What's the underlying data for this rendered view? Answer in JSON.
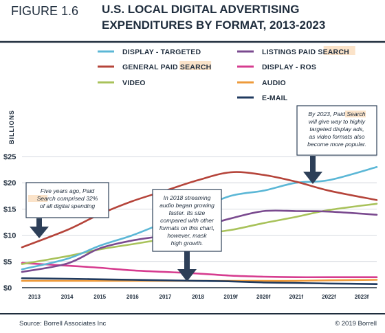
{
  "header": {
    "figure_label": "FIGURE 1.6",
    "title_line1": "U.S. LOCAL DIGITAL ADVERTISING",
    "title_line2": "EXPENDITURES BY FORMAT, 2013-2023"
  },
  "footer": {
    "source": "Source:  Borrell Associates Inc",
    "copyright": "© 2019 Borrell"
  },
  "annotations": [
    {
      "lines": [
        "Five years ago, Paid",
        "Search comprised 32%",
        "of all digital spending"
      ]
    },
    {
      "lines": [
        "In 2018 streaming",
        "audio began growing",
        "faster. Its size",
        "compared with other",
        "formats on this chart,",
        "however, mask",
        "high growth."
      ]
    },
    {
      "lines": [
        "By 2023, Paid Search",
        "will give way to highly",
        "targeted display ads,",
        "as video formats also",
        "become more popular."
      ]
    }
  ],
  "chart_data": {
    "type": "line",
    "title": "U.S. LOCAL DIGITAL ADVERTISING EXPENDITURES BY FORMAT, 2013-2023",
    "xlabel": "",
    "ylabel": "BILLIONS",
    "x": [
      "2013",
      "2014",
      "2015",
      "2016",
      "2017",
      "2018",
      "2019f",
      "2020f",
      "2021f",
      "2022f",
      "2023f"
    ],
    "ylim": [
      0,
      25
    ],
    "yticks": [
      "$0",
      "$5",
      "$10",
      "$15",
      "$20",
      "$25"
    ],
    "grid": true,
    "legend_position": "top",
    "series": [
      {
        "name": "DISPLAY - TARGETED",
        "color": "#5bb7d6",
        "values": [
          3.5,
          5.5,
          8.0,
          10.0,
          12.5,
          15.0,
          17.5,
          18.5,
          20.0,
          20.5,
          23.0
        ]
      },
      {
        "name": "GENERAL PAID SEARCH",
        "color": "#b5443a",
        "values": [
          7.7,
          11.0,
          14.0,
          16.5,
          18.5,
          20.5,
          22.0,
          21.5,
          20.2,
          18.5,
          16.7
        ]
      },
      {
        "name": "VIDEO",
        "color": "#a8c25a",
        "values": [
          4.5,
          6.0,
          7.3,
          8.3,
          9.3,
          10.2,
          11.0,
          12.3,
          13.5,
          14.8,
          16.0
        ]
      },
      {
        "name": "LISTINGS PAID SEARCH",
        "color": "#7a4a8f",
        "values": [
          3.0,
          4.6,
          7.5,
          9.0,
          10.0,
          11.5,
          13.2,
          14.6,
          14.6,
          14.5,
          13.9
        ]
      },
      {
        "name": "DISPLAY - ROS",
        "color": "#d63c8f",
        "values": [
          4.7,
          4.2,
          3.8,
          3.3,
          3.0,
          2.7,
          2.3,
          2.1,
          2.0,
          2.0,
          2.0
        ]
      },
      {
        "name": "AUDIO",
        "color": "#ee9a3a",
        "values": [
          1.3,
          1.3,
          1.3,
          1.3,
          1.3,
          1.3,
          1.3,
          1.3,
          1.3,
          1.4,
          1.5
        ]
      },
      {
        "name": "E-MAIL",
        "color": "#1f3a5f",
        "values": [
          1.8,
          1.7,
          1.6,
          1.5,
          1.4,
          1.3,
          1.2,
          1.0,
          0.9,
          0.8,
          0.7
        ]
      }
    ]
  }
}
